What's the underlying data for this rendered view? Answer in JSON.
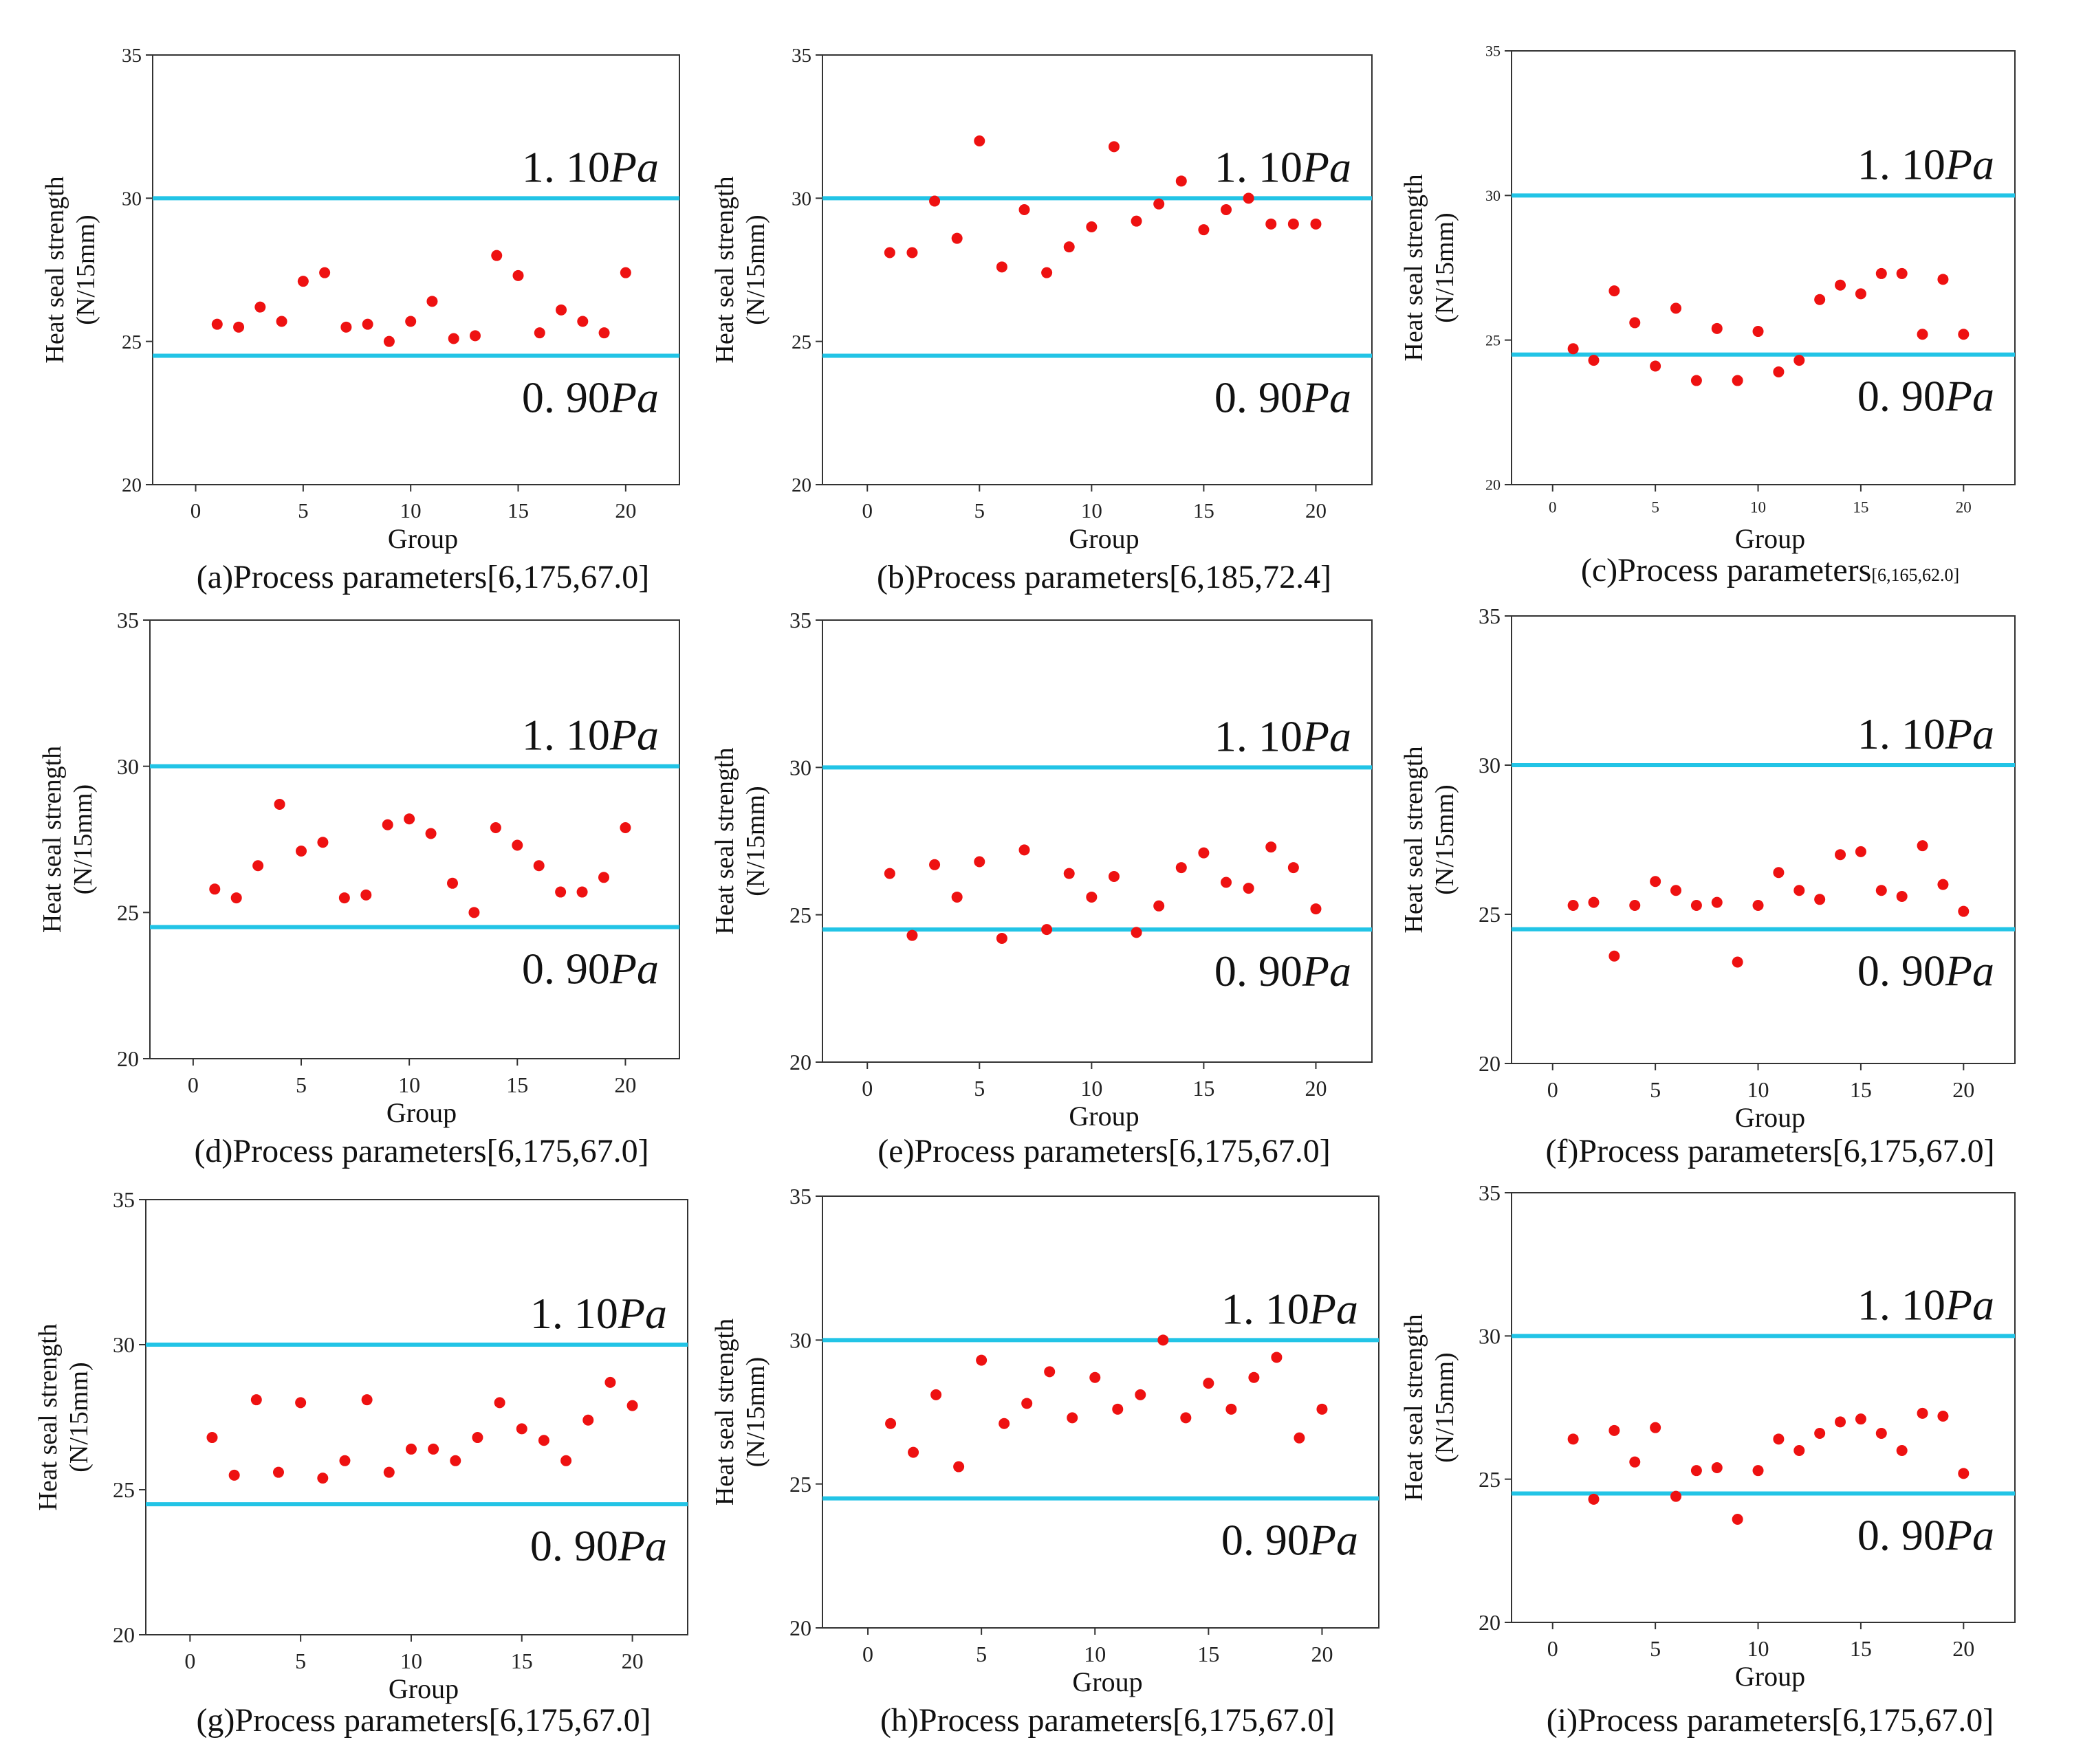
{
  "figure": {
    "upper_limit_label": {
      "num": "1. 10",
      "unit": "Pa"
    },
    "lower_limit_label": {
      "num": "0. 90",
      "unit": "Pa"
    }
  },
  "colors": {
    "point": "#ee1111",
    "limit_line": "#22c4e6",
    "frame": "#333333",
    "text": "#111111"
  },
  "chart_data": [
    {
      "id": "a",
      "type": "scatter",
      "caption_main": "(a)Process parameters[6,175,67.0]",
      "caption_bracket": "",
      "xlabel": "Group",
      "ylabel": [
        "Heat seal strength",
        "(N/15mm)"
      ],
      "xlim": [
        -2,
        22.5
      ],
      "ylim": [
        20,
        35
      ],
      "xticks": [
        "0",
        "5",
        "10",
        "15",
        "20"
      ],
      "yticks": [
        "20",
        "25",
        "30",
        "35"
      ],
      "upper_limit": 30,
      "lower_limit": 24.5,
      "x": [
        1,
        2,
        3,
        4,
        5,
        6,
        7,
        8,
        9,
        10,
        11,
        12,
        13,
        14,
        15,
        16,
        17,
        18,
        19,
        20
      ],
      "y": [
        25.6,
        25.5,
        26.2,
        25.7,
        27.1,
        27.4,
        25.5,
        25.6,
        25.0,
        25.7,
        26.4,
        25.1,
        25.2,
        28.0,
        27.3,
        25.3,
        26.1,
        25.7,
        25.3,
        27.4
      ]
    },
    {
      "id": "b",
      "type": "scatter",
      "caption_main": "(b)Process parameters[6,185,72.4]",
      "caption_bracket": "",
      "xlabel": "Group",
      "ylabel": [
        "Heat seal strength",
        "(N/15mm)"
      ],
      "xlim": [
        -2,
        22.5
      ],
      "ylim": [
        20,
        35
      ],
      "xticks": [
        "0",
        "5",
        "10",
        "15",
        "20"
      ],
      "yticks": [
        "20",
        "25",
        "30",
        "35"
      ],
      "upper_limit": 30,
      "lower_limit": 24.5,
      "x": [
        1,
        2,
        3,
        4,
        5,
        6,
        7,
        8,
        9,
        10,
        11,
        12,
        13,
        14,
        15,
        16,
        17,
        18,
        19,
        20
      ],
      "y": [
        28.1,
        28.1,
        29.9,
        28.6,
        32.0,
        27.6,
        29.6,
        27.4,
        28.3,
        29.0,
        31.8,
        29.2,
        29.8,
        30.6,
        28.9,
        29.6,
        30.0,
        29.1,
        29.1,
        29.1
      ]
    },
    {
      "id": "c",
      "type": "scatter",
      "caption_main": "(c)Process parameters",
      "caption_bracket": "[6,165,62.0]",
      "xlabel": "Group",
      "ylabel": [
        "Heat seal strength",
        "(N/15mm)"
      ],
      "xlim": [
        -2,
        22.5
      ],
      "ylim": [
        20,
        35
      ],
      "xticks": [
        "0",
        "5",
        "10",
        "15",
        "20"
      ],
      "yticks": [
        "20",
        "25",
        "30",
        "35"
      ],
      "upper_limit": 30,
      "lower_limit": 24.5,
      "x": [
        1,
        2,
        3,
        4,
        5,
        6,
        7,
        8,
        9,
        10,
        11,
        12,
        13,
        14,
        15,
        16,
        17,
        18,
        19,
        20
      ],
      "y": [
        24.7,
        24.3,
        26.7,
        25.6,
        24.1,
        26.1,
        23.6,
        25.4,
        23.6,
        25.3,
        23.9,
        24.3,
        26.4,
        26.9,
        26.6,
        27.3,
        27.3,
        25.2,
        27.1,
        25.2
      ]
    },
    {
      "id": "d",
      "type": "scatter",
      "caption_main": "(d)Process parameters[6,175,67.0]",
      "caption_bracket": "",
      "xlabel": "Group",
      "ylabel": [
        "Heat seal strength",
        "(N/15mm)"
      ],
      "xlim": [
        -2,
        22.5
      ],
      "ylim": [
        20,
        35
      ],
      "xticks": [
        "0",
        "5",
        "10",
        "15",
        "20"
      ],
      "yticks": [
        "20",
        "25",
        "30",
        "35"
      ],
      "upper_limit": 30,
      "lower_limit": 24.5,
      "x": [
        1,
        2,
        3,
        4,
        5,
        6,
        7,
        8,
        9,
        10,
        11,
        12,
        13,
        14,
        15,
        16,
        17,
        18,
        19,
        20
      ],
      "y": [
        25.8,
        25.5,
        26.6,
        28.7,
        27.1,
        27.4,
        25.5,
        25.6,
        28.0,
        28.2,
        27.7,
        26.0,
        25.0,
        27.9,
        27.3,
        26.6,
        25.7,
        25.7,
        26.2,
        27.9
      ]
    },
    {
      "id": "e",
      "type": "scatter",
      "caption_main": "(e)Process parameters[6,175,67.0]",
      "caption_bracket": "",
      "xlabel": "Group",
      "ylabel": [
        "Heat seal strength",
        "(N/15mm)"
      ],
      "xlim": [
        -2,
        22.5
      ],
      "ylim": [
        20,
        35
      ],
      "xticks": [
        "0",
        "5",
        "10",
        "15",
        "20"
      ],
      "yticks": [
        "20",
        "25",
        "30",
        "35"
      ],
      "upper_limit": 30,
      "lower_limit": 24.5,
      "x": [
        1,
        2,
        3,
        4,
        5,
        6,
        7,
        8,
        9,
        10,
        11,
        12,
        13,
        14,
        15,
        16,
        17,
        18,
        19,
        20
      ],
      "y": [
        26.4,
        24.3,
        26.7,
        25.6,
        26.8,
        24.2,
        27.2,
        24.5,
        26.4,
        25.6,
        26.3,
        24.4,
        25.3,
        26.6,
        27.1,
        26.1,
        25.9,
        27.3,
        26.6,
        25.2
      ]
    },
    {
      "id": "f",
      "type": "scatter",
      "caption_main": "(f)Process parameters[6,175,67.0]",
      "caption_bracket": "",
      "xlabel": "Group",
      "ylabel": [
        "Heat seal strength",
        "(N/15mm)"
      ],
      "xlim": [
        -2,
        22.5
      ],
      "ylim": [
        20,
        35
      ],
      "xticks": [
        "0",
        "5",
        "10",
        "15",
        "20"
      ],
      "yticks": [
        "20",
        "25",
        "30",
        "35"
      ],
      "upper_limit": 30,
      "lower_limit": 24.5,
      "x": [
        1,
        2,
        3,
        4,
        5,
        6,
        7,
        8,
        9,
        10,
        11,
        12,
        13,
        14,
        15,
        16,
        17,
        18,
        19,
        20
      ],
      "y": [
        25.3,
        25.4,
        23.6,
        25.3,
        26.1,
        25.8,
        25.3,
        25.4,
        23.4,
        25.3,
        26.4,
        25.8,
        25.5,
        27.0,
        27.1,
        25.8,
        25.6,
        27.3,
        26.0,
        25.1
      ]
    },
    {
      "id": "g",
      "type": "scatter",
      "caption_main": "(g)Process parameters[6,175,67.0]",
      "caption_bracket": "",
      "xlabel": "Group",
      "ylabel": [
        "Heat seal strength",
        "(N/15mm)"
      ],
      "xlim": [
        -2,
        22.5
      ],
      "ylim": [
        20,
        35
      ],
      "xticks": [
        "0",
        "5",
        "10",
        "15",
        "20"
      ],
      "yticks": [
        "20",
        "25",
        "30",
        "35"
      ],
      "upper_limit": 30,
      "lower_limit": 24.5,
      "x": [
        1,
        2,
        3,
        4,
        5,
        6,
        7,
        8,
        9,
        10,
        11,
        12,
        13,
        14,
        15,
        16,
        17,
        18,
        19,
        20
      ],
      "y": [
        26.8,
        25.5,
        28.1,
        25.6,
        28.0,
        25.4,
        26.0,
        28.1,
        25.6,
        26.4,
        26.4,
        26.0,
        26.8,
        28.0,
        27.1,
        26.7,
        26.0,
        27.4,
        28.7,
        27.9
      ]
    },
    {
      "id": "h",
      "type": "scatter",
      "caption_main": "(h)Process parameters[6,175,67.0]",
      "caption_bracket": "",
      "xlabel": "Group",
      "ylabel": [
        "Heat seal strength",
        "(N/15mm)"
      ],
      "xlim": [
        -2,
        22.5
      ],
      "ylim": [
        20,
        35
      ],
      "xticks": [
        "0",
        "5",
        "10",
        "15",
        "20"
      ],
      "yticks": [
        "20",
        "25",
        "30",
        "35"
      ],
      "upper_limit": 30,
      "lower_limit": 24.5,
      "x": [
        1,
        2,
        3,
        4,
        5,
        6,
        7,
        8,
        9,
        10,
        11,
        12,
        13,
        14,
        15,
        16,
        17,
        18,
        19,
        20
      ],
      "y": [
        27.1,
        26.1,
        28.1,
        25.6,
        29.3,
        27.1,
        27.8,
        28.9,
        27.3,
        28.7,
        27.6,
        28.1,
        30.0,
        27.3,
        28.5,
        27.6,
        28.7,
        29.4,
        26.6,
        27.6
      ]
    },
    {
      "id": "i",
      "type": "scatter",
      "caption_main": "(i)Process parameters[6,175,67.0]",
      "caption_bracket": "",
      "xlabel": "Group",
      "ylabel": [
        "Heat seal strength",
        "(N/15mm)"
      ],
      "xlim": [
        -2,
        22.5
      ],
      "ylim": [
        20,
        35
      ],
      "xticks": [
        "0",
        "5",
        "10",
        "15",
        "20"
      ],
      "yticks": [
        "20",
        "25",
        "30",
        "35"
      ],
      "upper_limit": 30,
      "lower_limit": 24.5,
      "x": [
        1,
        2,
        3,
        4,
        5,
        6,
        7,
        8,
        9,
        10,
        11,
        12,
        13,
        14,
        15,
        16,
        17,
        18,
        19,
        20
      ],
      "y": [
        26.4,
        24.3,
        26.7,
        25.6,
        26.8,
        24.4,
        25.3,
        25.4,
        23.6,
        25.3,
        26.4,
        26.0,
        26.6,
        27.0,
        27.1,
        26.6,
        26.0,
        27.3,
        27.2,
        25.2
      ]
    }
  ]
}
